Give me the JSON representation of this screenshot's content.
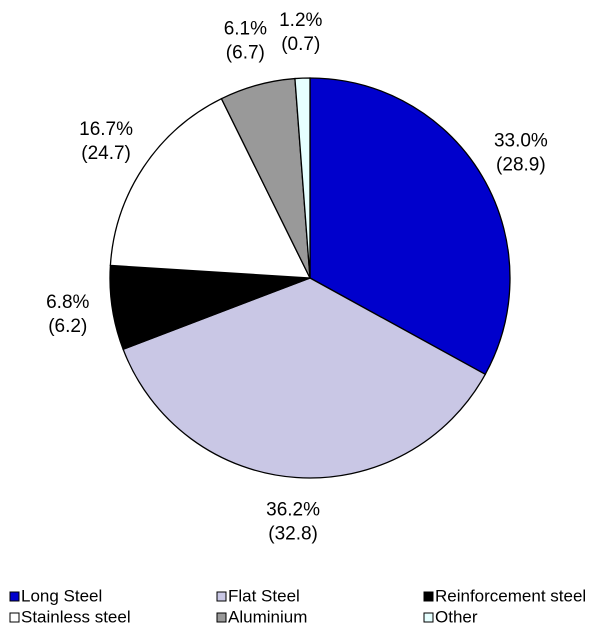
{
  "chart_data": {
    "type": "pie",
    "categories": [
      "Long Steel",
      "Flat Steel",
      "Reinforcement steel",
      "Stainless steel",
      "Aluminium",
      "Other"
    ],
    "values": [
      33.0,
      36.2,
      6.8,
      16.7,
      6.1,
      1.2
    ],
    "value_labels": [
      "33.0%",
      "36.2%",
      "6.8%",
      "16.7%",
      "6.1%",
      "1.2%"
    ],
    "secondary_labels": [
      "(28.9)",
      "(32.8)",
      "(6.2)",
      "(24.7)",
      "(6.7)",
      "(0.7)"
    ],
    "colors": [
      "#0000cc",
      "#c9c7e5",
      "#000000",
      "#ffffff",
      "#999999",
      "#e6ffff"
    ],
    "legend": "bottom"
  }
}
